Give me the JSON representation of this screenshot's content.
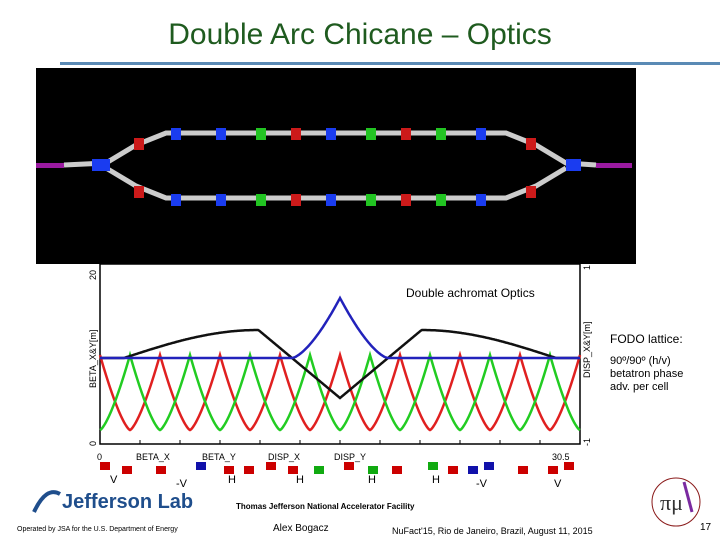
{
  "slide": {
    "title": "Double Arc Chicane – Optics",
    "page_number": "17"
  },
  "plot": {
    "annotation": "Double achromat Optics",
    "left_axis_label": "BETA_X&Y[m]",
    "right_axis_label": "DISP_X&Y[m]",
    "left_top": "20",
    "left_bottom": "0",
    "right_top": "1",
    "right_bottom": "-1",
    "x_start": "0",
    "x_end": "30.5",
    "legend": [
      "BETA_X",
      "BETA_Y",
      "DISP_X",
      "DISP_Y"
    ],
    "colors": {
      "beta_x": "#e02020",
      "beta_y": "#22cc22",
      "disp_x": "#111111",
      "disp_y": "#2222bb"
    }
  },
  "fodo": {
    "title": "FODO lattice:",
    "line1": "90º/90º (h/v)",
    "line2": "betatron phase",
    "line3": "adv. per cell"
  },
  "markers": [
    "V",
    "-V",
    "H",
    "H",
    "H",
    "H",
    "-V",
    "V"
  ],
  "footer": {
    "logo": "Jefferson Lab",
    "facility": "Thomas Jefferson National Accelerator Facility",
    "operated_by": "Operated by JSA for the U.S. Department of Energy",
    "speaker": "Alex Bogacz",
    "event": "NuFact'15, Rio de Janeiro, Brazil, August 11, 2015"
  }
}
